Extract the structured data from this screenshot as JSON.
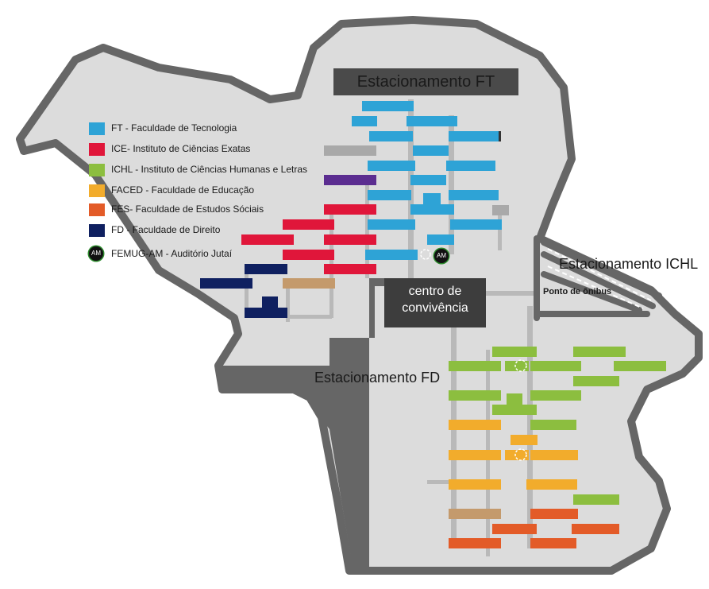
{
  "colors": {
    "FT": "#2ea3d6",
    "ICE": "#e0163a",
    "ICHL": "#8cbe3f",
    "FACED": "#f2ac2c",
    "FES": "#e35b28",
    "FD": "#0f2060",
    "extra_gray": "#a9a9a9",
    "extra_purple": "#5b2d90",
    "extra_tan": "#c49a6c",
    "campus": "#dcdcdc",
    "outline": "#666666",
    "paths": "#b9b9b9",
    "dark_lot": "#4a4a4a",
    "centro_bg": "#3d3d3d"
  },
  "legend": [
    {
      "key": "FT",
      "label": "FT - Faculdade de Tecnologia"
    },
    {
      "key": "ICE",
      "label": "ICE- Instituto de Ciências Exatas"
    },
    {
      "key": "ICHL",
      "label": "ICHL - Instituto de Ciências Humanas e Letras"
    },
    {
      "key": "FACED",
      "label": "FACED - Faculdade de Educação"
    },
    {
      "key": "FES",
      "label": "FES- Faculdade de Estudos Sóciais"
    },
    {
      "key": "FD",
      "label": "FD - Faculdade de Direito"
    },
    {
      "key": "AM",
      "label": "FEMUG-AM - Auditório Jutaí",
      "badge_text": "AM"
    }
  ],
  "labels": {
    "parking_ft": "Estacionamento FT",
    "parking_ichl": "Estacionamento ICHL",
    "bus_stop": "Ponto de ônibus",
    "parking_fd": "Estacionamento FD",
    "centro_line1": "centro de",
    "centro_line2": "convivência",
    "auditorium_badge": "AM"
  },
  "map": {
    "legend_icon": "colored-square-swatch",
    "auditorium_icon": "circle-badge"
  }
}
